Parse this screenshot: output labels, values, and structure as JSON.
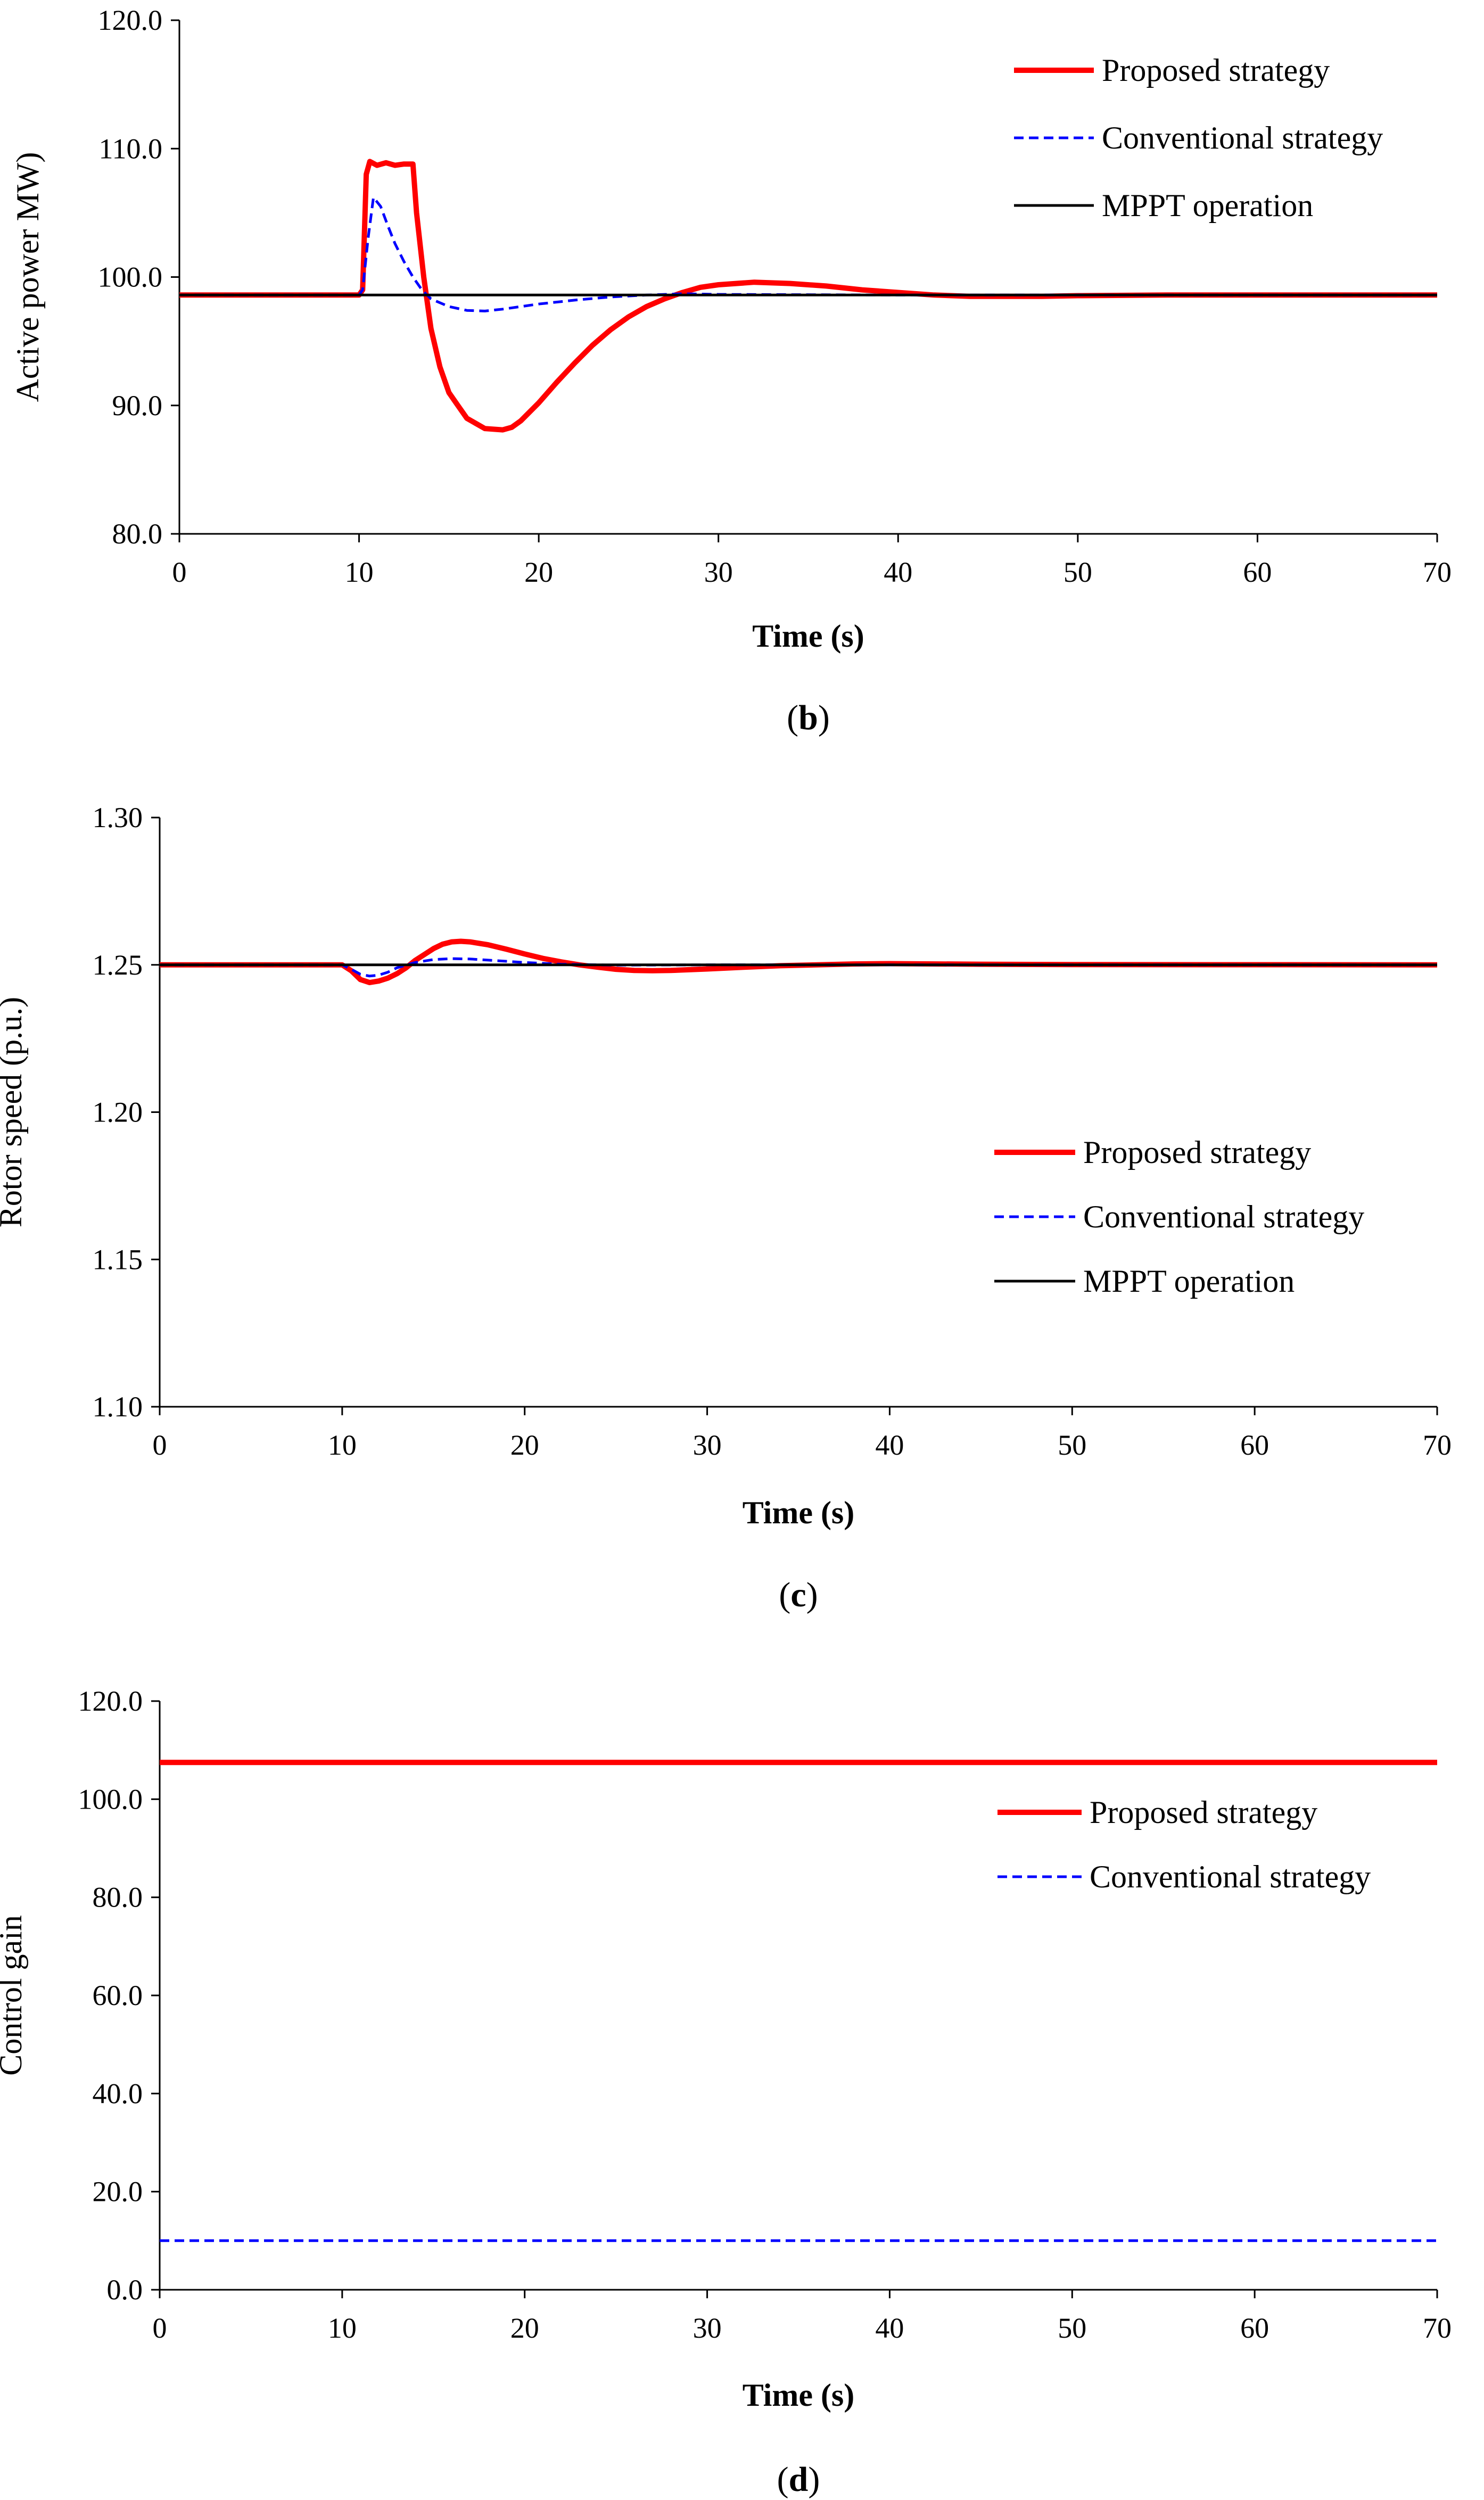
{
  "colors": {
    "proposed": "#ff0000",
    "conventional": "#0000ff",
    "mppt": "#000000"
  },
  "chart_data": [
    {
      "id": "b",
      "type": "line",
      "caption": {
        "open": "(",
        "letter": "b",
        "close": ")"
      },
      "title": "",
      "xlabel": "Time (s)",
      "ylabel": "Active power MW)",
      "xlim": [
        0,
        70
      ],
      "ylim": [
        80,
        120
      ],
      "xticks": [
        0,
        10,
        20,
        30,
        40,
        50,
        60,
        70
      ],
      "yticks": [
        80,
        90,
        100,
        110,
        120
      ],
      "ytick_labels": [
        "80.0",
        "90.0",
        "100.0",
        "110.0",
        "120.0"
      ],
      "legend": "top-right",
      "series": [
        {
          "name": "Proposed strategy",
          "style": "solid-thick",
          "color_key": "proposed",
          "x": [
            0,
            10,
            10.2,
            10.4,
            10.6,
            11,
            11.5,
            12,
            12.5,
            13,
            13.2,
            13.6,
            14,
            14.5,
            15,
            15.5,
            16,
            17,
            18,
            18.5,
            19,
            20,
            21,
            22,
            23,
            24,
            25,
            26,
            27,
            28,
            29,
            30,
            32,
            34,
            36,
            38,
            40,
            42,
            44,
            46,
            48,
            50,
            55,
            60,
            65,
            70
          ],
          "y": [
            98.6,
            98.6,
            99,
            108,
            109,
            108.7,
            108.9,
            108.7,
            108.8,
            108.8,
            105,
            100,
            96,
            93,
            91,
            90,
            89,
            88.2,
            88.1,
            88.3,
            88.8,
            90.2,
            91.8,
            93.3,
            94.7,
            95.9,
            96.9,
            97.7,
            98.3,
            98.8,
            99.2,
            99.4,
            99.6,
            99.5,
            99.3,
            99.0,
            98.8,
            98.6,
            98.5,
            98.5,
            98.5,
            98.55,
            98.6,
            98.6,
            98.6,
            98.6
          ]
        },
        {
          "name": "Conventional strategy",
          "style": "dashed",
          "color_key": "conventional",
          "x": [
            0,
            10,
            10.2,
            10.5,
            10.8,
            11.2,
            11.6,
            12,
            12.5,
            13,
            13.5,
            14,
            15,
            16,
            17,
            18,
            19,
            20,
            22,
            24,
            26,
            28,
            30,
            40,
            50,
            60,
            70
          ],
          "y": [
            98.6,
            98.6,
            99,
            103,
            106.2,
            105.5,
            104,
            102.6,
            101.2,
            100,
            99,
            98.3,
            97.7,
            97.4,
            97.35,
            97.5,
            97.7,
            97.9,
            98.2,
            98.45,
            98.6,
            98.7,
            98.65,
            98.6,
            98.6,
            98.6,
            98.6
          ]
        },
        {
          "name": "MPPT operation",
          "style": "solid-thin",
          "color_key": "mppt",
          "x": [
            0,
            70
          ],
          "y": [
            98.6,
            98.6
          ]
        }
      ]
    },
    {
      "id": "c",
      "type": "line",
      "caption": {
        "open": "(",
        "letter": "c",
        "close": ")"
      },
      "title": "",
      "xlabel": "Time (s)",
      "ylabel": "Rotor speed (p.u.)",
      "xlim": [
        0,
        70
      ],
      "ylim": [
        1.1,
        1.3
      ],
      "xticks": [
        0,
        10,
        20,
        30,
        40,
        50,
        60,
        70
      ],
      "yticks": [
        1.1,
        1.15,
        1.2,
        1.25,
        1.3
      ],
      "ytick_labels": [
        "1.10",
        "1.15",
        "1.20",
        "1.25",
        "1.30"
      ],
      "legend": "center-right",
      "series": [
        {
          "name": "Proposed strategy",
          "style": "solid-thick",
          "color_key": "proposed",
          "x": [
            0,
            10,
            10.5,
            11,
            11.5,
            12,
            12.5,
            13,
            13.5,
            14,
            14.5,
            15,
            15.5,
            16,
            16.5,
            17,
            18,
            19,
            20,
            21,
            22,
            23,
            24,
            25,
            26,
            27,
            28,
            30,
            32,
            34,
            36,
            38,
            40,
            45,
            50,
            70
          ],
          "y": [
            1.25,
            1.25,
            1.248,
            1.245,
            1.244,
            1.2445,
            1.2455,
            1.247,
            1.249,
            1.2515,
            1.2535,
            1.2555,
            1.257,
            1.2578,
            1.258,
            1.2578,
            1.2568,
            1.2553,
            1.2537,
            1.2522,
            1.251,
            1.25,
            1.2492,
            1.2485,
            1.2481,
            1.248,
            1.2481,
            1.2486,
            1.2492,
            1.2497,
            1.25,
            1.2503,
            1.2504,
            1.2502,
            1.2501,
            1.25
          ]
        },
        {
          "name": "Conventional strategy",
          "style": "dashed",
          "color_key": "conventional",
          "x": [
            0,
            10,
            10.5,
            11,
            11.5,
            12,
            12.5,
            13,
            14,
            15,
            16,
            17,
            18,
            20,
            22,
            25,
            30,
            40,
            70
          ],
          "y": [
            1.25,
            1.25,
            1.2485,
            1.2468,
            1.2462,
            1.2465,
            1.2475,
            1.249,
            1.2508,
            1.2518,
            1.2521,
            1.252,
            1.2516,
            1.2508,
            1.2502,
            1.2499,
            1.25,
            1.25,
            1.25
          ]
        },
        {
          "name": "MPPT operation",
          "style": "solid-thin",
          "color_key": "mppt",
          "x": [
            0,
            70
          ],
          "y": [
            1.25,
            1.25
          ]
        }
      ]
    },
    {
      "id": "d",
      "type": "line",
      "caption": {
        "open": "(",
        "letter": "d",
        "close": ")"
      },
      "title": "",
      "xlabel": "Time (s)",
      "ylabel": "Control gain",
      "xlim": [
        0,
        70
      ],
      "ylim": [
        0,
        120
      ],
      "xticks": [
        0,
        10,
        20,
        30,
        40,
        50,
        60,
        70
      ],
      "yticks": [
        0,
        20,
        40,
        60,
        80,
        100,
        120
      ],
      "ytick_labels": [
        "0.0",
        "20.0",
        "40.0",
        "60.0",
        "80.0",
        "100.0",
        "120.0"
      ],
      "legend": "top-right",
      "series": [
        {
          "name": "Proposed strategy",
          "style": "solid-thick",
          "color_key": "proposed",
          "x": [
            0,
            70
          ],
          "y": [
            107.5,
            107.5
          ]
        },
        {
          "name": "Conventional strategy",
          "style": "dashed",
          "color_key": "conventional",
          "x": [
            0,
            70
          ],
          "y": [
            10,
            10
          ]
        }
      ]
    }
  ]
}
